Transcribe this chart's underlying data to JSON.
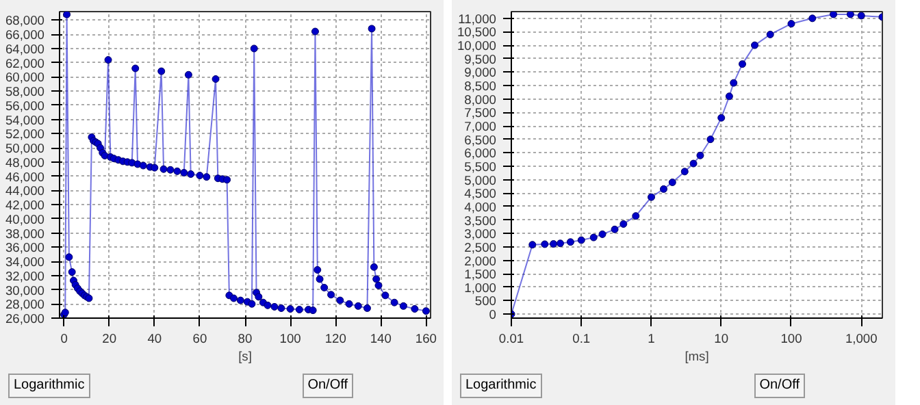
{
  "chart_data": [
    {
      "type": "line",
      "xlabel": "[s]",
      "xlim": [
        -2,
        162
      ],
      "ylim": [
        26000,
        69200
      ],
      "xticks": [
        0,
        20,
        40,
        60,
        80,
        100,
        120,
        140,
        160
      ],
      "yticks": [
        {
          "value": 26000,
          "label": "26,000"
        },
        {
          "value": 28000,
          "label": "28,000"
        },
        {
          "value": 30000,
          "label": "30,000"
        },
        {
          "value": 32000,
          "label": "32,000"
        },
        {
          "value": 34000,
          "label": "34,000"
        },
        {
          "value": 36000,
          "label": "36,000"
        },
        {
          "value": 38000,
          "label": "38,000"
        },
        {
          "value": 40000,
          "label": "40,000"
        },
        {
          "value": 42000,
          "label": "42,000"
        },
        {
          "value": 44000,
          "label": "44,000"
        },
        {
          "value": 46000,
          "label": "46,000"
        },
        {
          "value": 48000,
          "label": "48,000"
        },
        {
          "value": 50000,
          "label": "50,000"
        },
        {
          "value": 52000,
          "label": "52,000"
        },
        {
          "value": 54000,
          "label": "54,000"
        },
        {
          "value": 56000,
          "label": "56,000"
        },
        {
          "value": 58000,
          "label": "58,000"
        },
        {
          "value": 60000,
          "label": "60,000"
        },
        {
          "value": 62000,
          "label": "62,000"
        },
        {
          "value": 64000,
          "label": "64,000"
        },
        {
          "value": 66000,
          "label": "66,000"
        },
        {
          "value": 68000,
          "label": "68,000"
        }
      ],
      "grid": true,
      "marker": "circle",
      "line_style": "solid",
      "annotations": [
        "Logarithmic",
        "On/Off"
      ],
      "x": [
        0,
        0.5,
        1.2,
        2.2,
        3.5,
        4.2,
        5,
        6,
        7,
        8,
        9,
        10,
        11,
        12.2,
        13,
        14,
        15,
        16,
        17,
        18,
        19.5,
        20.5,
        22,
        24,
        26,
        28,
        30,
        31.5,
        32.5,
        35,
        38,
        40,
        43,
        44,
        47,
        50,
        53,
        55,
        56,
        60,
        63,
        67,
        68,
        70,
        72,
        73,
        75,
        78,
        81,
        83,
        84,
        85,
        86,
        88,
        90,
        93,
        96,
        100,
        104,
        108,
        110,
        111,
        112,
        113,
        115,
        118,
        122,
        126,
        130,
        134,
        136,
        137,
        138,
        139,
        142,
        146,
        150,
        155,
        160
      ],
      "series": [
        {
          "color": "#0000c8",
          "values": [
            26500,
            26800,
            68800,
            34600,
            32500,
            31300,
            30700,
            30200,
            29800,
            29500,
            29200,
            29000,
            28800,
            51500,
            51000,
            50800,
            50600,
            50000,
            49300,
            48900,
            62400,
            48700,
            48500,
            48300,
            48100,
            48000,
            47900,
            61200,
            47700,
            47500,
            47300,
            47200,
            60800,
            47000,
            46900,
            46700,
            46500,
            60300,
            46300,
            46100,
            45900,
            59700,
            45700,
            45600,
            45500,
            29200,
            28800,
            28500,
            28300,
            28000,
            64000,
            29600,
            29000,
            28200,
            27800,
            27600,
            27400,
            27300,
            27200,
            27200,
            27100,
            66400,
            32800,
            31500,
            30300,
            29300,
            28500,
            28000,
            27700,
            27400,
            66800,
            33200,
            31500,
            30600,
            29200,
            28200,
            27700,
            27300,
            27000
          ]
        }
      ]
    },
    {
      "type": "line",
      "xlabel": "[ms]",
      "log": "x",
      "xlim": [
        0.01,
        2000
      ],
      "ylim": [
        -150,
        11250
      ],
      "xticks": [
        0.01,
        0.1,
        1,
        10,
        100,
        {
          "value": 1000,
          "label": "1,000"
        }
      ],
      "yticks": [
        0,
        500,
        {
          "value": 1000,
          "label": "1,000"
        },
        {
          "value": 1500,
          "label": "1,500"
        },
        {
          "value": 2000,
          "label": "2,000"
        },
        {
          "value": 2500,
          "label": "2,500"
        },
        {
          "value": 3000,
          "label": "3,000"
        },
        {
          "value": 3500,
          "label": "3,500"
        },
        {
          "value": 4000,
          "label": "4,000"
        },
        {
          "value": 4500,
          "label": "4,500"
        },
        {
          "value": 5000,
          "label": "5,000"
        },
        {
          "value": 5500,
          "label": "5,500"
        },
        {
          "value": 6000,
          "label": "6,000"
        },
        {
          "value": 6500,
          "label": "6,500"
        },
        {
          "value": 7000,
          "label": "7,000"
        },
        {
          "value": 7500,
          "label": "7,500"
        },
        {
          "value": 8000,
          "label": "8,000"
        },
        {
          "value": 8500,
          "label": "8,500"
        },
        {
          "value": 9000,
          "label": "9,000"
        },
        {
          "value": 9500,
          "label": "9,500"
        },
        {
          "value": 10000,
          "label": "10,000"
        },
        {
          "value": 10500,
          "label": "10,500"
        },
        {
          "value": 11000,
          "label": "11,000"
        }
      ],
      "grid": true,
      "marker": "circle",
      "line_style": "solid",
      "annotations": [
        "Logarithmic",
        "On/Off"
      ],
      "x": [
        0.01,
        0.02,
        0.03,
        0.04,
        0.05,
        0.07,
        0.1,
        0.15,
        0.2,
        0.3,
        0.4,
        0.6,
        1,
        1.5,
        2,
        3,
        4,
        5,
        7,
        10,
        13,
        15,
        20,
        30,
        50,
        100,
        200,
        400,
        700,
        1000,
        2000
      ],
      "series": [
        {
          "color": "#0000c8",
          "values": [
            0,
            2580,
            2600,
            2610,
            2630,
            2680,
            2750,
            2850,
            2970,
            3150,
            3350,
            3650,
            4350,
            4650,
            4900,
            5300,
            5600,
            5900,
            6500,
            7300,
            8100,
            8600,
            9300,
            10000,
            10400,
            10800,
            11000,
            11150,
            11150,
            11100,
            11050
          ]
        }
      ]
    }
  ]
}
